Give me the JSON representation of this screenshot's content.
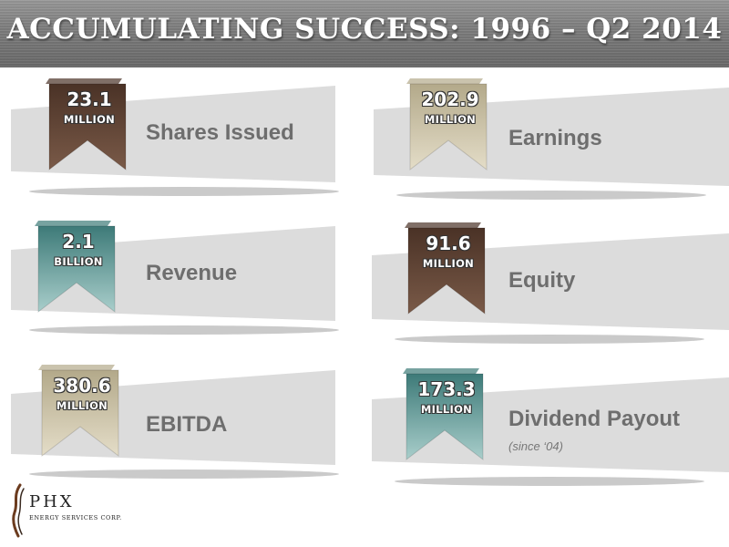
{
  "title": "ACCUMULATING SUCCESS: 1996 – Q2 2014",
  "cards": [
    {
      "number": "23.1",
      "unit": "MILLION",
      "label": "Shares Issued",
      "note": "",
      "ribbon_color": "#4a3226",
      "ribbon_light": "#7a5a48"
    },
    {
      "number": "202.9",
      "unit": "MILLION",
      "label": "Earnings",
      "note": "",
      "ribbon_color": "#b3a98a",
      "ribbon_light": "#e4ddc8"
    },
    {
      "number": "2.1",
      "unit": "BILLION",
      "label": "Revenue",
      "note": "",
      "ribbon_color": "#3d7a78",
      "ribbon_light": "#a9cecb"
    },
    {
      "number": "91.6",
      "unit": "MILLION",
      "label": "Equity",
      "note": "",
      "ribbon_color": "#4a3226",
      "ribbon_light": "#7a5a48"
    },
    {
      "number": "380.6",
      "unit": "MILLION",
      "label": "EBITDA",
      "note": "",
      "ribbon_color": "#b3a98a",
      "ribbon_light": "#e4ddc8"
    },
    {
      "number": "173.3",
      "unit": "MILLION",
      "label": "Dividend Payout",
      "note": "(since ‘04)",
      "ribbon_color": "#3d7a78",
      "ribbon_light": "#a9cecb"
    }
  ],
  "logo": {
    "name": "PHX",
    "subtitle": "ENERGY SERVICES CORP."
  }
}
